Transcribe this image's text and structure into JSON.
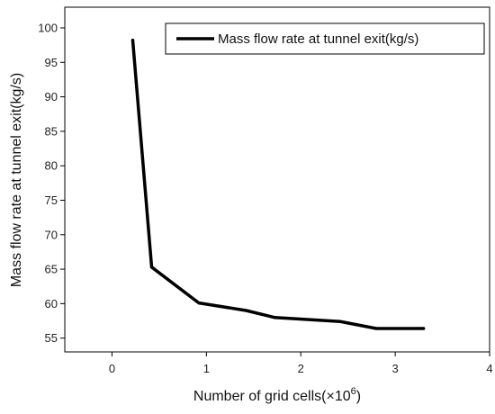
{
  "chart_data": {
    "type": "line",
    "title": "",
    "xlabel": "Number of grid cells(×10",
    "xlabel_sup": "6",
    "xlabel_end": ")",
    "ylabel": "Mass flow rate at tunnel exit(kg/s)",
    "xlim": [
      -0.5,
      4
    ],
    "ylim": [
      53,
      103
    ],
    "x_ticks": [
      0,
      1,
      2,
      3,
      4
    ],
    "y_ticks": [
      55,
      60,
      65,
      70,
      75,
      80,
      85,
      90,
      95,
      100
    ],
    "grid": false,
    "legend_position": "top-right",
    "line_color": "#000000",
    "series": [
      {
        "name": "Mass flow rate at tunnel exit(kg/s)",
        "x": [
          0.22,
          0.42,
          0.92,
          1.42,
          1.72,
          2.42,
          2.8,
          3.3
        ],
        "y": [
          98.2,
          65.3,
          60.1,
          59.0,
          58.0,
          57.4,
          56.4,
          56.4
        ]
      }
    ]
  }
}
